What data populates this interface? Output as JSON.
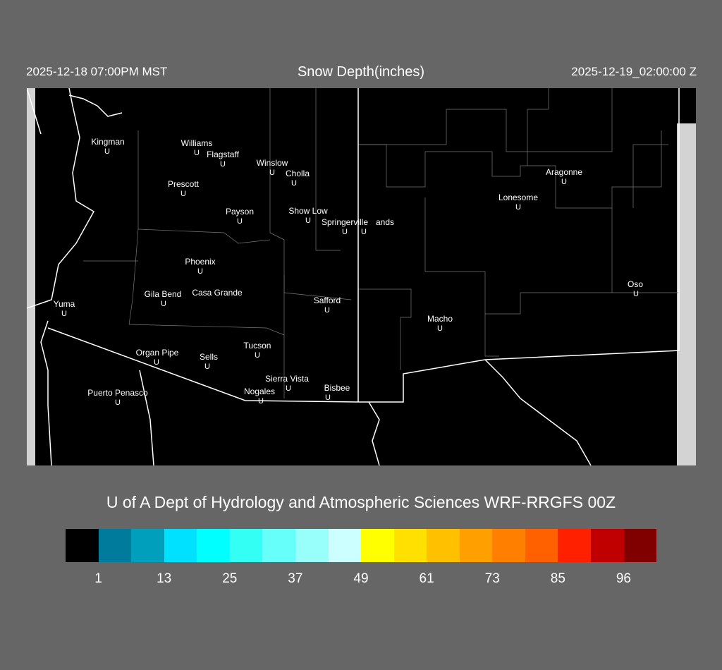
{
  "header": {
    "local_time": "2025-12-18 07:00PM MST",
    "title": "Snow Depth(inches)",
    "valid_time": "2025-12-19_02:00:00 Z"
  },
  "credit": "U of A Dept of Hydrology and Atmospheric Sciences WRF-RRGFS 00Z",
  "map": {
    "marker_glyph": "U",
    "cities": [
      {
        "name": "Kingman"
      },
      {
        "name": "Williams"
      },
      {
        "name": "Flagstaff"
      },
      {
        "name": "Winslow"
      },
      {
        "name": "Cholla"
      },
      {
        "name": "Prescott"
      },
      {
        "name": "Payson"
      },
      {
        "name": "Show Low"
      },
      {
        "name": "Springerville"
      },
      {
        "name": "ands"
      },
      {
        "name": "Lonesome"
      },
      {
        "name": "Aragonne"
      },
      {
        "name": "Phoenix"
      },
      {
        "name": "Gila Bend"
      },
      {
        "name": "Casa Grande"
      },
      {
        "name": "Safford"
      },
      {
        "name": "Yuma"
      },
      {
        "name": "Oso"
      },
      {
        "name": "Macho"
      },
      {
        "name": "Tucson"
      },
      {
        "name": "Organ Pipe"
      },
      {
        "name": "Sells"
      },
      {
        "name": "Sierra Vista"
      },
      {
        "name": "Nogales"
      },
      {
        "name": "Bisbee"
      },
      {
        "name": "Puerto Penasco"
      }
    ]
  },
  "colorbar": {
    "colors": [
      "#000000",
      "#007b9b",
      "#00a0bd",
      "#00e0ff",
      "#00ffff",
      "#33fff5",
      "#66fffa",
      "#99fffa",
      "#ccffff",
      "#ffff00",
      "#ffe000",
      "#ffc000",
      "#ffa000",
      "#ff8000",
      "#ff6000",
      "#ff2000",
      "#c00000",
      "#800000"
    ],
    "ticks": [
      "1",
      "13",
      "25",
      "37",
      "49",
      "61",
      "73",
      "85",
      "96"
    ]
  }
}
